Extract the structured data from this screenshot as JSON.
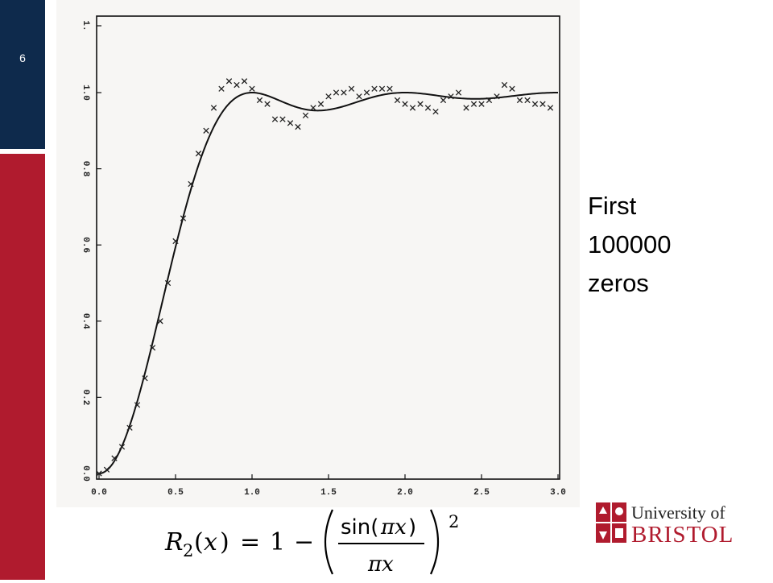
{
  "slide": {
    "number": "6",
    "side_text": [
      "First",
      "100000",
      "zeros"
    ],
    "logo": {
      "line1": "University of",
      "line2": "BRISTOL"
    },
    "formula_tex": "R_2(x) = 1 - \\left(\\frac{\\sin(\\pi x)}{\\pi x}\\right)^2",
    "colors": {
      "sidebar_top": "#0e2a4c",
      "sidebar_bottom": "#b01b2e",
      "brand_red": "#b01b2e"
    }
  },
  "chart_data": {
    "type": "scatter",
    "title": "",
    "xlabel": "",
    "ylabel": "",
    "xlim": [
      0.0,
      3.0
    ],
    "ylim": [
      0.0,
      1.05
    ],
    "xticks": [
      "0.0",
      "0.5",
      "1.0",
      "1.5",
      "2.0",
      "2.5",
      "3.0"
    ],
    "yticks": [
      "0.0",
      "0.2",
      "0.4",
      "0.6",
      "0.8",
      "1.0",
      "1."
    ],
    "grid": false,
    "series": [
      {
        "kind": "points",
        "marker": "x",
        "x": [
          0.0,
          0.05,
          0.1,
          0.15,
          0.2,
          0.25,
          0.3,
          0.35,
          0.4,
          0.45,
          0.5,
          0.55,
          0.6,
          0.65,
          0.7,
          0.75,
          0.8,
          0.85,
          0.9,
          0.95,
          1.0,
          1.05,
          1.1,
          1.15,
          1.2,
          1.25,
          1.3,
          1.35,
          1.4,
          1.45,
          1.5,
          1.55,
          1.6,
          1.65,
          1.7,
          1.75,
          1.8,
          1.85,
          1.9,
          1.95,
          2.0,
          2.05,
          2.1,
          2.15,
          2.2,
          2.25,
          2.3,
          2.35,
          2.4,
          2.45,
          2.5,
          2.55,
          2.6,
          2.65,
          2.7,
          2.75,
          2.8,
          2.85,
          2.9,
          2.95
        ],
        "y": [
          0.0,
          0.01,
          0.04,
          0.07,
          0.12,
          0.18,
          0.25,
          0.33,
          0.4,
          0.5,
          0.61,
          0.67,
          0.76,
          0.84,
          0.9,
          0.96,
          1.01,
          1.03,
          1.02,
          1.03,
          1.01,
          0.98,
          0.97,
          0.93,
          0.93,
          0.92,
          0.91,
          0.94,
          0.96,
          0.97,
          0.99,
          1.0,
          1.0,
          1.01,
          0.99,
          1.0,
          1.01,
          1.01,
          1.01,
          0.98,
          0.97,
          0.96,
          0.97,
          0.96,
          0.95,
          0.98,
          0.99,
          1.0,
          0.96,
          0.97,
          0.97,
          0.98,
          0.99,
          1.02,
          1.01,
          0.98,
          0.98,
          0.97,
          0.97,
          0.96
        ]
      },
      {
        "kind": "curve",
        "function": "1 - (sin(pi x)/(pi x))^2"
      }
    ]
  }
}
